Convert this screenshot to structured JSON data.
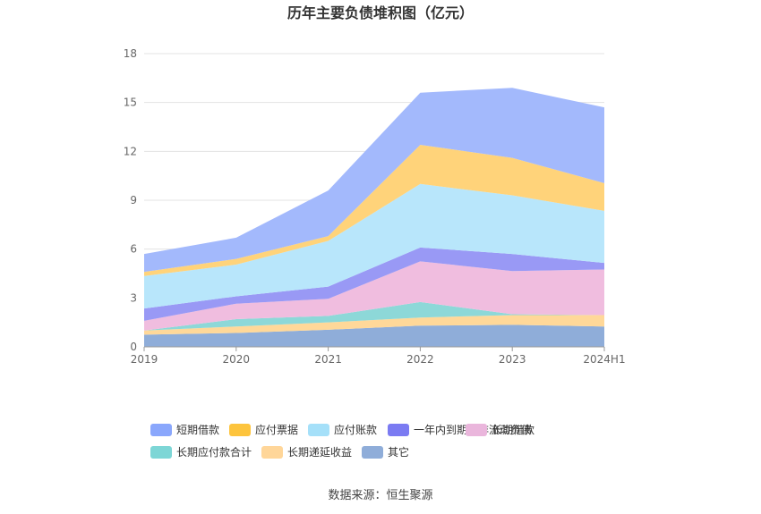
{
  "chart_data": {
    "type": "area",
    "stacked": true,
    "title": "历年主要负债堆积图（亿元）",
    "source": "数据来源：恒生聚源",
    "categories": [
      "2019",
      "2020",
      "2021",
      "2022",
      "2023",
      "2024H1"
    ],
    "ylim": [
      0,
      18
    ],
    "yticks": [
      "0",
      "3",
      "6",
      "9",
      "12",
      "15",
      "18"
    ],
    "grid": true,
    "legend_position": "bottom",
    "series": [
      {
        "name": "其它",
        "color": "#8fadd9",
        "values": [
          0.75,
          0.85,
          1.05,
          1.3,
          1.35,
          1.25
        ]
      },
      {
        "name": "长期递延收益",
        "color": "#ffd899",
        "values": [
          0.25,
          0.4,
          0.45,
          0.5,
          0.6,
          0.7
        ]
      },
      {
        "name": "长期应付款合计",
        "color": "#8dd8d8",
        "values": [
          0.0,
          0.45,
          0.4,
          0.95,
          0.05,
          0.0
        ]
      },
      {
        "name": "长期借款",
        "color": "#f0bddf",
        "values": [
          0.6,
          0.95,
          1.05,
          2.5,
          2.65,
          2.8
        ]
      },
      {
        "name": "一年内到期的非流动负债",
        "color": "#9999f5",
        "values": [
          0.75,
          0.45,
          0.75,
          0.85,
          1.05,
          0.4
        ]
      },
      {
        "name": "应付账款",
        "color": "#b8e6fb",
        "values": [
          2.0,
          1.95,
          2.8,
          3.9,
          3.6,
          3.2
        ]
      },
      {
        "name": "应付票据",
        "color": "#ffd37a",
        "values": [
          0.25,
          0.35,
          0.3,
          2.4,
          2.3,
          1.7
        ]
      },
      {
        "name": "短期借款",
        "color": "#a3b9fc",
        "values": [
          1.1,
          1.3,
          2.8,
          3.2,
          4.3,
          4.65
        ]
      }
    ],
    "legend_order": [
      "短期借款",
      "应付票据",
      "应付账款",
      "一年内到期的非流动负债",
      "长期借款",
      "长期应付款合计",
      "长期递延收益",
      "其它"
    ],
    "legend_swatch_colors": {
      "短期借款": "#8aa7fc",
      "应付票据": "#fdc43d",
      "应付账款": "#a5e0f9",
      "一年内到期的非流动负债": "#7b7bf2",
      "长期借款": "#eab6dc",
      "长期应付款合计": "#7dd6d6",
      "长期递延收益": "#ffd699",
      "其它": "#8fadd9"
    }
  }
}
